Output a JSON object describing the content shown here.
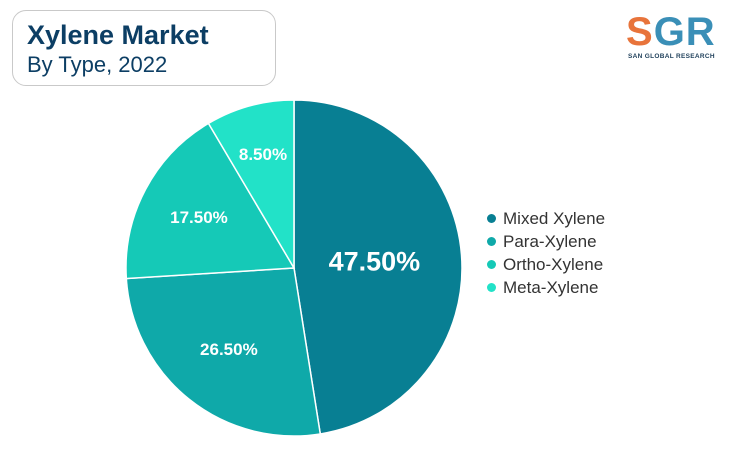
{
  "header": {
    "title": "Xylene Market",
    "subtitle": "By Type, 2022"
  },
  "logo": {
    "letter_s": "S",
    "letters_gr": "GR",
    "tagline": "SAN GLOBAL RESEARCH"
  },
  "chart_data": {
    "type": "pie",
    "title": "Xylene Market",
    "subtitle": "By Type, 2022",
    "legend_position": "right",
    "slices": [
      {
        "name": "Mixed Xylene",
        "value": 47.5,
        "label": "47.50%",
        "color": "#087f93"
      },
      {
        "name": "Para-Xylene",
        "value": 26.5,
        "label": "26.50%",
        "color": "#0fa9a9"
      },
      {
        "name": "Ortho-Xylene",
        "value": 17.5,
        "label": "17.50%",
        "color": "#15c9b7"
      },
      {
        "name": "Meta-Xylene",
        "value": 8.5,
        "label": "8.50%",
        "color": "#22e2c8"
      }
    ]
  }
}
